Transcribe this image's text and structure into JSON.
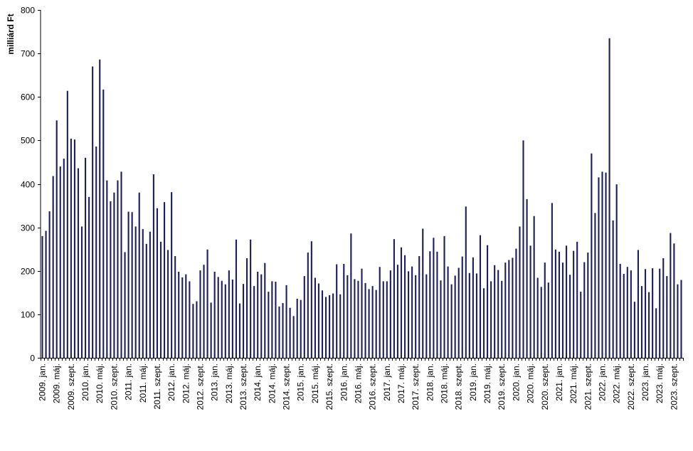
{
  "chart_data": {
    "type": "bar",
    "ylabel": "milliárd Ft",
    "ylim": [
      0,
      800
    ],
    "yticks": [
      0,
      100,
      200,
      300,
      400,
      500,
      600,
      700,
      800
    ],
    "grid": false,
    "legend": "none",
    "bar_color": "#1f1f5c",
    "xtick_labels": [
      "2009. jan.",
      "2009. máj.",
      "2009. szept.",
      "2010. jan.",
      "2010. máj.",
      "2010. szept.",
      "2011. jan.",
      "2011. máj.",
      "2011. szept.",
      "2012. jan.",
      "2012. máj.",
      "2012. szept.",
      "2013. jan.",
      "2013. máj.",
      "2013. szept.",
      "2014. jan.",
      "2014. máj.",
      "2014. szept.",
      "2015. jan.",
      "2015. máj.",
      "2015. szept.",
      "2016. jan.",
      "2016. máj.",
      "2016. szept.",
      "2017. jan.",
      "2017. máj.",
      "2017. szept.",
      "2018. jan.",
      "2018. máj.",
      "2018. szept.",
      "2019. jan.",
      "2019. máj.",
      "2019. szept.",
      "2020. jan.",
      "2020. máj.",
      "2020. szept.",
      "2021. jan.",
      "2021. máj.",
      "2021. szept.",
      "2022. jan.",
      "2022. máj.",
      "2022. szept.",
      "2023. jan.",
      "2023. máj.",
      "2023. szept."
    ],
    "tick_every": 4,
    "values": [
      280,
      292,
      337,
      418,
      546,
      440,
      458,
      614,
      504,
      502,
      436,
      302,
      460,
      370,
      670,
      486,
      686,
      617,
      408,
      360,
      380,
      408,
      428,
      243,
      336,
      335,
      302,
      380,
      296,
      262,
      290,
      422,
      344,
      267,
      358,
      248,
      381,
      234,
      198,
      185,
      192,
      176,
      124,
      130,
      201,
      214,
      249,
      127,
      198,
      186,
      177,
      169,
      201,
      180,
      272,
      125,
      170,
      229,
      272,
      165,
      198,
      192,
      218,
      152,
      176,
      175,
      118,
      126,
      167,
      115,
      96,
      136,
      133,
      188,
      242,
      268,
      184,
      171,
      155,
      140,
      144,
      148,
      215,
      146,
      216,
      190,
      286,
      181,
      177,
      205,
      172,
      158,
      165,
      156,
      209,
      176,
      176,
      201,
      273,
      214,
      254,
      236,
      199,
      210,
      190,
      234,
      297,
      192,
      245,
      276,
      244,
      178,
      280,
      210,
      169,
      189,
      207,
      233,
      348,
      195,
      231,
      194,
      282,
      160,
      259,
      176,
      213,
      202,
      177,
      219,
      225,
      230,
      251,
      302,
      500,
      365,
      258,
      326,
      184,
      163,
      219,
      173,
      356,
      249,
      244,
      219,
      258,
      191,
      246,
      267,
      152,
      220,
      242,
      470,
      333,
      415,
      428,
      426,
      735,
      316,
      399,
      216,
      193,
      209,
      201,
      129,
      248,
      165,
      204,
      151,
      206,
      114,
      205,
      229,
      188,
      287,
      263,
      169,
      179
    ]
  }
}
